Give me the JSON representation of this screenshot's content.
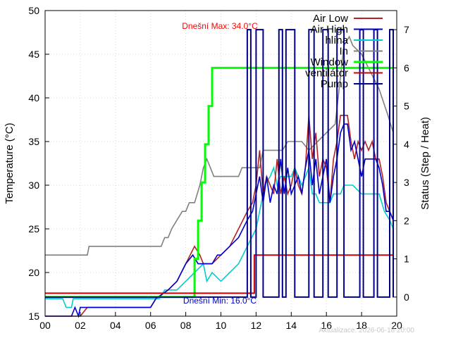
{
  "chart_data": {
    "type": "line",
    "title": "",
    "xlabel": "",
    "ylabel": "Temperature (°C)",
    "y2label": "Status (Step / Heat)",
    "xlim": [
      0,
      20
    ],
    "ylim": [
      15,
      50
    ],
    "y2lim": [
      -0.5,
      7.5
    ],
    "x_ticks": [
      0,
      2,
      4,
      6,
      8,
      10,
      12,
      14,
      16,
      18,
      20
    ],
    "x_tick_labels": [
      "00",
      "02",
      "04",
      "06",
      "08",
      "10",
      "12",
      "14",
      "16",
      "18",
      "20"
    ],
    "y_ticks": [
      15,
      20,
      25,
      30,
      35,
      40,
      45,
      50
    ],
    "y_tick_labels": [
      "15",
      "20",
      "25",
      "30",
      "35",
      "40",
      "45",
      "50"
    ],
    "y2_ticks": [
      0,
      1,
      2,
      3,
      4,
      5,
      6,
      7
    ],
    "y2_tick_labels": [
      "0",
      "1",
      "2",
      "3",
      "4",
      "5",
      "6",
      "7"
    ],
    "grid": true,
    "legend_position": "top-right",
    "annotations": {
      "max_label": "Dnešní Max: 34.0°C",
      "min_label": "Dnešní Min: 16.0°C",
      "footer": "Aktualizace: 2026-06-18 20:00"
    },
    "series": [
      {
        "name": "Air Low",
        "color": "#b22222",
        "axis": "left",
        "points": [
          [
            0,
            15
          ],
          [
            2.0,
            15
          ],
          [
            2.4,
            16
          ],
          [
            6.0,
            16
          ],
          [
            6.3,
            17
          ],
          [
            7.0,
            18
          ],
          [
            7.5,
            19
          ],
          [
            8.0,
            21
          ],
          [
            8.5,
            23
          ],
          [
            8.8,
            22
          ],
          [
            9.0,
            21
          ],
          [
            9.5,
            21
          ],
          [
            10.0,
            22
          ],
          [
            10.5,
            23
          ],
          [
            11.0,
            25
          ],
          [
            11.5,
            27
          ],
          [
            11.8,
            28
          ],
          [
            12.0,
            30
          ],
          [
            12.2,
            34
          ],
          [
            12.4,
            29
          ],
          [
            12.6,
            31
          ],
          [
            12.8,
            30
          ],
          [
            13.0,
            29
          ],
          [
            13.2,
            33
          ],
          [
            13.4,
            29
          ],
          [
            13.6,
            31
          ],
          [
            13.8,
            29
          ],
          [
            14.0,
            30
          ],
          [
            14.2,
            32
          ],
          [
            14.4,
            30
          ],
          [
            14.6,
            29
          ],
          [
            14.8,
            32
          ],
          [
            15.0,
            38
          ],
          [
            15.2,
            33
          ],
          [
            15.4,
            36
          ],
          [
            15.6,
            31
          ],
          [
            15.8,
            33
          ],
          [
            16.0,
            32
          ],
          [
            16.2,
            28
          ],
          [
            16.4,
            33
          ],
          [
            16.6,
            35
          ],
          [
            16.8,
            38
          ],
          [
            17.0,
            38
          ],
          [
            17.2,
            38
          ],
          [
            17.4,
            35
          ],
          [
            17.6,
            33
          ],
          [
            17.8,
            35
          ],
          [
            18.0,
            34
          ],
          [
            18.2,
            35
          ],
          [
            18.4,
            34
          ],
          [
            18.6,
            35
          ],
          [
            18.8,
            33
          ],
          [
            19.0,
            33
          ],
          [
            19.2,
            31
          ],
          [
            19.4,
            28
          ],
          [
            19.6,
            27
          ],
          [
            19.8,
            26
          ]
        ]
      },
      {
        "name": "Air High",
        "color": "#0000cd",
        "axis": "left",
        "points": [
          [
            0,
            15
          ],
          [
            1.5,
            15
          ],
          [
            1.7,
            16
          ],
          [
            1.9,
            15
          ],
          [
            2.0,
            16
          ],
          [
            6.0,
            16
          ],
          [
            6.3,
            17
          ],
          [
            7.0,
            18
          ],
          [
            7.5,
            19
          ],
          [
            8.0,
            21
          ],
          [
            8.4,
            22
          ],
          [
            8.7,
            21
          ],
          [
            9.0,
            21
          ],
          [
            9.5,
            21
          ],
          [
            9.8,
            22
          ],
          [
            10.0,
            22
          ],
          [
            10.5,
            23
          ],
          [
            11.0,
            24
          ],
          [
            11.5,
            26
          ],
          [
            11.8,
            27
          ],
          [
            12.0,
            29
          ],
          [
            12.2,
            31
          ],
          [
            12.4,
            28
          ],
          [
            12.6,
            31
          ],
          [
            12.8,
            28
          ],
          [
            13.0,
            30
          ],
          [
            13.2,
            29
          ],
          [
            13.4,
            33
          ],
          [
            13.6,
            29
          ],
          [
            13.8,
            32
          ],
          [
            14.0,
            29
          ],
          [
            14.2,
            30
          ],
          [
            14.4,
            31
          ],
          [
            14.6,
            29
          ],
          [
            14.8,
            32
          ],
          [
            15.0,
            34
          ],
          [
            15.2,
            30
          ],
          [
            15.4,
            33
          ],
          [
            15.6,
            29
          ],
          [
            15.8,
            31
          ],
          [
            16.0,
            33
          ],
          [
            16.2,
            28
          ],
          [
            16.4,
            31
          ],
          [
            16.6,
            33
          ],
          [
            16.8,
            36
          ],
          [
            17.0,
            37
          ],
          [
            17.2,
            37
          ],
          [
            17.4,
            34
          ],
          [
            17.6,
            35
          ],
          [
            17.8,
            33
          ],
          [
            18.0,
            31
          ],
          [
            18.2,
            33
          ],
          [
            18.4,
            33
          ],
          [
            18.6,
            33
          ],
          [
            18.8,
            33
          ],
          [
            19.0,
            32
          ],
          [
            19.2,
            30
          ],
          [
            19.4,
            27
          ],
          [
            19.6,
            27
          ],
          [
            19.8,
            26
          ]
        ]
      },
      {
        "name": "hlína",
        "color": "#00ced1",
        "axis": "left",
        "points": [
          [
            0,
            17
          ],
          [
            1.0,
            17
          ],
          [
            1.2,
            16
          ],
          [
            1.5,
            16
          ],
          [
            1.6,
            17
          ],
          [
            6.0,
            17
          ],
          [
            6.5,
            17
          ],
          [
            6.8,
            18
          ],
          [
            7.5,
            18
          ],
          [
            8.0,
            19
          ],
          [
            8.5,
            20
          ],
          [
            9.0,
            21
          ],
          [
            9.2,
            19
          ],
          [
            9.5,
            20
          ],
          [
            10.0,
            19
          ],
          [
            10.5,
            20
          ],
          [
            11.0,
            21
          ],
          [
            11.5,
            23
          ],
          [
            12.0,
            25
          ],
          [
            12.2,
            27
          ],
          [
            12.5,
            30
          ],
          [
            12.8,
            31
          ],
          [
            13.0,
            32
          ],
          [
            13.2,
            30
          ],
          [
            13.4,
            31
          ],
          [
            13.6,
            31
          ],
          [
            13.8,
            31
          ],
          [
            14.0,
            31
          ],
          [
            14.2,
            32
          ],
          [
            14.4,
            31
          ],
          [
            14.6,
            30
          ],
          [
            14.8,
            31
          ],
          [
            15.0,
            32
          ],
          [
            15.2,
            29
          ],
          [
            15.4,
            29
          ],
          [
            15.6,
            28
          ],
          [
            15.8,
            28
          ],
          [
            16.0,
            28
          ],
          [
            16.2,
            28
          ],
          [
            16.4,
            29
          ],
          [
            16.6,
            29
          ],
          [
            16.8,
            29
          ],
          [
            17.0,
            30
          ],
          [
            17.5,
            30
          ],
          [
            18.0,
            29
          ],
          [
            18.5,
            29
          ],
          [
            19.0,
            29
          ],
          [
            19.3,
            27
          ],
          [
            19.6,
            26
          ],
          [
            19.8,
            25
          ]
        ]
      },
      {
        "name": "In",
        "color": "#808080",
        "axis": "left",
        "points": [
          [
            0,
            22
          ],
          [
            2.4,
            22
          ],
          [
            2.5,
            23
          ],
          [
            6.6,
            23
          ],
          [
            6.8,
            24
          ],
          [
            7.0,
            24
          ],
          [
            7.2,
            25
          ],
          [
            7.5,
            26
          ],
          [
            7.8,
            27
          ],
          [
            8.0,
            27
          ],
          [
            8.2,
            28
          ],
          [
            8.5,
            28
          ],
          [
            8.8,
            30
          ],
          [
            9.0,
            32
          ],
          [
            9.2,
            33
          ],
          [
            9.4,
            32
          ],
          [
            9.6,
            31
          ],
          [
            11.0,
            31
          ],
          [
            11.2,
            32
          ],
          [
            12.2,
            32
          ],
          [
            12.4,
            34
          ],
          [
            13.0,
            34
          ],
          [
            13.5,
            34
          ],
          [
            13.8,
            35
          ],
          [
            14.2,
            35
          ],
          [
            14.6,
            35
          ],
          [
            15.0,
            34
          ],
          [
            15.5,
            35
          ],
          [
            16.0,
            36
          ],
          [
            16.5,
            37
          ],
          [
            17.0,
            46
          ],
          [
            17.3,
            47
          ],
          [
            17.5,
            46
          ],
          [
            18.0,
            45
          ],
          [
            18.5,
            43
          ],
          [
            19.0,
            41
          ],
          [
            19.5,
            38
          ],
          [
            19.8,
            36
          ]
        ]
      },
      {
        "name": "Window",
        "color": "#00ff00",
        "axis": "right",
        "points": [
          [
            0,
            0
          ],
          [
            8.5,
            0
          ],
          [
            8.5,
            1
          ],
          [
            8.7,
            1
          ],
          [
            8.7,
            2
          ],
          [
            8.9,
            2
          ],
          [
            8.9,
            3
          ],
          [
            9.1,
            3
          ],
          [
            9.1,
            4
          ],
          [
            9.3,
            4
          ],
          [
            9.3,
            5
          ],
          [
            9.5,
            5
          ],
          [
            9.5,
            6
          ],
          [
            19.8,
            6
          ]
        ]
      },
      {
        "name": "ventilátor",
        "color": "#cc0000",
        "axis": "right",
        "points": [
          [
            0,
            0.1
          ],
          [
            11.9,
            0.1
          ],
          [
            11.9,
            1.1
          ],
          [
            19.8,
            1.1
          ]
        ]
      },
      {
        "name": "Pump",
        "color": "#00008b",
        "axis": "right",
        "points": [
          [
            0,
            0
          ],
          [
            11.5,
            0
          ],
          [
            11.5,
            7
          ],
          [
            11.7,
            7
          ],
          [
            11.7,
            0
          ],
          [
            12.0,
            0
          ],
          [
            12.0,
            7
          ],
          [
            12.4,
            7
          ],
          [
            12.4,
            0
          ],
          [
            13.3,
            0
          ],
          [
            13.3,
            7
          ],
          [
            13.5,
            7
          ],
          [
            13.5,
            0
          ],
          [
            13.7,
            0
          ],
          [
            13.7,
            7
          ],
          [
            14.2,
            7
          ],
          [
            14.2,
            0
          ],
          [
            15.0,
            0
          ],
          [
            15.0,
            7
          ],
          [
            15.3,
            7
          ],
          [
            15.3,
            0
          ],
          [
            15.8,
            0
          ],
          [
            15.8,
            7
          ],
          [
            16.1,
            7
          ],
          [
            16.1,
            0
          ],
          [
            16.6,
            0
          ],
          [
            16.6,
            7
          ],
          [
            17.0,
            7
          ],
          [
            17.0,
            0
          ],
          [
            17.9,
            0
          ],
          [
            17.9,
            7
          ],
          [
            18.1,
            7
          ],
          [
            18.1,
            0
          ],
          [
            18.7,
            0
          ],
          [
            18.7,
            7
          ],
          [
            18.9,
            7
          ],
          [
            18.9,
            0
          ],
          [
            19.6,
            0
          ],
          [
            19.6,
            7
          ],
          [
            19.8,
            7
          ],
          [
            19.8,
            0
          ]
        ]
      }
    ]
  }
}
